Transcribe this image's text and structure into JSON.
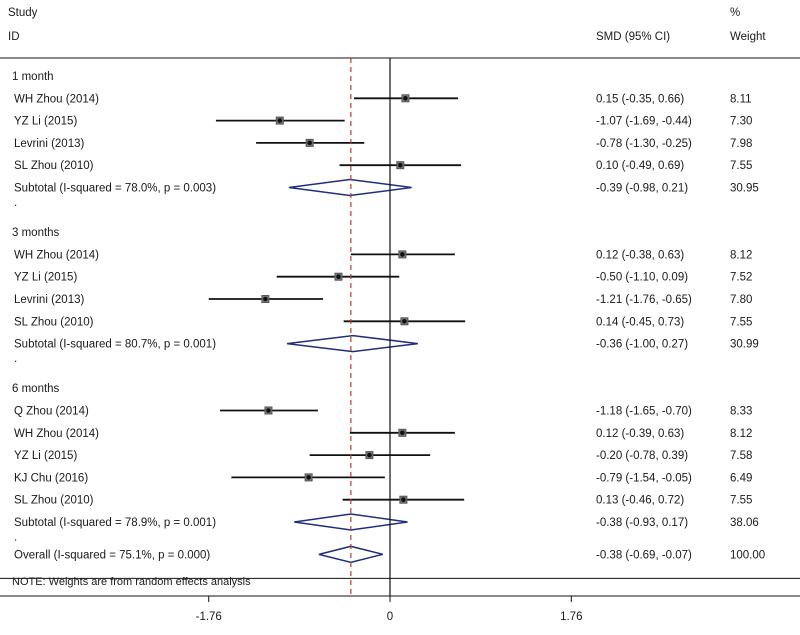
{
  "chart_data": {
    "type": "forest",
    "header": {
      "study": "Study",
      "id": "ID",
      "smd": "SMD (95% CI)",
      "pct": "%",
      "weight": "Weight"
    },
    "x_range": [
      -3.0,
      3.0
    ],
    "null_value": 0,
    "overall_effect": -0.38,
    "x_ticks": [
      {
        "value": -1.76,
        "label": "-1.76"
      },
      {
        "value": 0,
        "label": "0"
      },
      {
        "value": 1.76,
        "label": "1.76"
      }
    ],
    "groups": [
      {
        "label": "1 month",
        "studies": [
          {
            "name": "WH Zhou (2014)",
            "est": 0.15,
            "lo": -0.35,
            "hi": 0.66,
            "ci": "0.15 (-0.35, 0.66)",
            "weight": "8.11"
          },
          {
            "name": "YZ Li (2015)",
            "est": -1.07,
            "lo": -1.69,
            "hi": -0.44,
            "ci": "-1.07 (-1.69, -0.44)",
            "weight": "7.30"
          },
          {
            "name": "Levrini (2013)",
            "est": -0.78,
            "lo": -1.3,
            "hi": -0.25,
            "ci": "-0.78 (-1.30, -0.25)",
            "weight": "7.98"
          },
          {
            "name": "SL Zhou (2010)",
            "est": 0.1,
            "lo": -0.49,
            "hi": 0.69,
            "ci": "0.10 (-0.49, 0.69)",
            "weight": "7.55"
          }
        ],
        "subtotal": {
          "label": "Subtotal  (I-squared = 78.0%, p = 0.003)",
          "est": -0.39,
          "lo": -0.98,
          "hi": 0.21,
          "ci": "-0.39 (-0.98, 0.21)",
          "weight": "30.95"
        }
      },
      {
        "label": "3 months",
        "studies": [
          {
            "name": "WH Zhou (2014)",
            "est": 0.12,
            "lo": -0.38,
            "hi": 0.63,
            "ci": "0.12 (-0.38, 0.63)",
            "weight": "8.12"
          },
          {
            "name": "YZ Li (2015)",
            "est": -0.5,
            "lo": -1.1,
            "hi": 0.09,
            "ci": "-0.50 (-1.10, 0.09)",
            "weight": "7.52"
          },
          {
            "name": "Levrini (2013)",
            "est": -1.21,
            "lo": -1.76,
            "hi": -0.65,
            "ci": "-1.21 (-1.76, -0.65)",
            "weight": "7.80"
          },
          {
            "name": "SL Zhou (2010)",
            "est": 0.14,
            "lo": -0.45,
            "hi": 0.73,
            "ci": "0.14 (-0.45, 0.73)",
            "weight": "7.55"
          }
        ],
        "subtotal": {
          "label": "Subtotal  (I-squared = 80.7%, p = 0.001)",
          "est": -0.36,
          "lo": -1.0,
          "hi": 0.27,
          "ci": "-0.36 (-1.00, 0.27)",
          "weight": "30.99"
        }
      },
      {
        "label": "6 months",
        "studies": [
          {
            "name": "Q Zhou (2014)",
            "est": -1.18,
            "lo": -1.65,
            "hi": -0.7,
            "ci": "-1.18 (-1.65, -0.70)",
            "weight": "8.33"
          },
          {
            "name": "WH Zhou (2014)",
            "est": 0.12,
            "lo": -0.39,
            "hi": 0.63,
            "ci": "0.12 (-0.39, 0.63)",
            "weight": "8.12"
          },
          {
            "name": "YZ Li (2015)",
            "est": -0.2,
            "lo": -0.78,
            "hi": 0.39,
            "ci": "-0.20 (-0.78, 0.39)",
            "weight": "7.58"
          },
          {
            "name": "KJ Chu (2016)",
            "est": -0.79,
            "lo": -1.54,
            "hi": -0.05,
            "ci": "-0.79 (-1.54, -0.05)",
            "weight": "6.49"
          },
          {
            "name": "SL Zhou (2010)",
            "est": 0.13,
            "lo": -0.46,
            "hi": 0.72,
            "ci": "0.13 (-0.46, 0.72)",
            "weight": "7.55"
          }
        ],
        "subtotal": {
          "label": "Subtotal  (I-squared = 78.9%, p = 0.001)",
          "est": -0.38,
          "lo": -0.93,
          "hi": 0.17,
          "ci": "-0.38 (-0.93, 0.17)",
          "weight": "38.06"
        }
      }
    ],
    "overall": {
      "label": "Overall  (I-squared = 75.1%, p = 0.000)",
      "est": -0.38,
      "lo": -0.69,
      "hi": -0.07,
      "ci": "-0.38 (-0.69, -0.07)",
      "weight": "100.00"
    },
    "note": "NOTE: Weights are from random effects analysis",
    "separator": ".",
    "colors": {
      "line": "#111111",
      "diamond": "#1f2f7a",
      "reference": "#c0392b"
    }
  }
}
